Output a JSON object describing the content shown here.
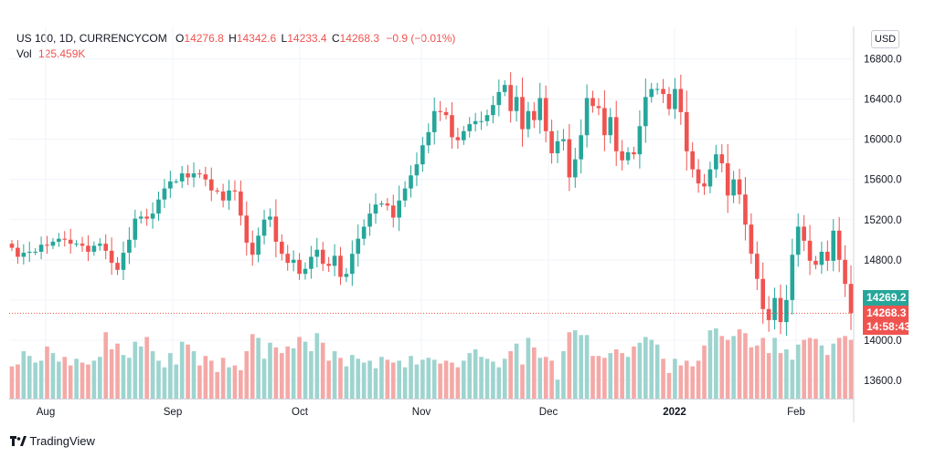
{
  "header": {
    "symbol": "US 100, 1D, CURRENCYCOM",
    "o_label": "O",
    "o_value": "14276.8",
    "h_label": "H",
    "h_value": "14342.6",
    "l_label": "L",
    "l_value": "14233.4",
    "c_label": "C",
    "c_value": "14268.3",
    "change": "−0.9 (−0.01%)",
    "vol_label": "Vol",
    "vol_value": "125.459K"
  },
  "currency": "USD",
  "price_tags": {
    "last": "14269.2",
    "close": "14268.3",
    "countdown": "14:58:43"
  },
  "brand": {
    "name": "TradingView",
    "icon": "tradingview-logo-icon"
  },
  "colors": {
    "up": "#26a69a",
    "down": "#ef5350",
    "vol_up": "#9ed4cf",
    "vol_down": "#f4a9a7"
  },
  "chart_data": {
    "type": "candlestick",
    "y_ticks": [
      "16800.0",
      "16400.0",
      "16000.0",
      "15600.0",
      "15200.0",
      "14800.0",
      "14400.0",
      "14000.0",
      "13600.0"
    ],
    "x_ticks": [
      "Aug",
      "Sep",
      "Oct",
      "Nov",
      "Dec",
      "2022",
      "Feb"
    ],
    "ylim": [
      13400,
      16900
    ],
    "grid": true,
    "opens": [
      14960,
      14920,
      14830,
      14870,
      14880,
      14880,
      14950,
      14940,
      14980,
      15010,
      15000,
      14960,
      14960,
      14940,
      14880,
      14940,
      14960,
      14890,
      14770,
      14700,
      14870,
      15000,
      15210,
      15230,
      15210,
      15260,
      15400,
      15510,
      15580,
      15580,
      15660,
      15620,
      15660,
      15650,
      15600,
      15490,
      15480,
      15390,
      15490,
      15480,
      15240,
      14970,
      14850,
      15040,
      15200,
      15230,
      14980,
      14860,
      14770,
      14800,
      14660,
      14710,
      14830,
      14900,
      14760,
      14740,
      14840,
      14630,
      14660,
      14860,
      15010,
      15130,
      15260,
      15350,
      15360,
      15340,
      15220,
      15390,
      15510,
      15640,
      15750,
      15940,
      16070,
      16280,
      16270,
      16240,
      16020,
      15990,
      16080,
      16150,
      16180,
      16180,
      16240,
      16340,
      16470,
      16540,
      16280,
      16420,
      16100,
      16280,
      16190,
      16410,
      16080,
      15860,
      15980,
      16000,
      15620,
      15800,
      16040,
      16410,
      16330,
      16310,
      16040,
      16220,
      15880,
      15790,
      15870,
      15850,
      16130,
      16420,
      16500,
      16500,
      16450,
      16300,
      16500,
      16270,
      15880,
      15700,
      15560,
      15530,
      15700,
      15850,
      15760,
      15440,
      15600,
      15450,
      15150,
      14860,
      14610,
      14310,
      14200,
      14420,
      14180,
      14400,
      14850,
      15130,
      14990,
      14790,
      14750,
      14880,
      14790,
      15090,
      14800,
      14560
    ],
    "closes": [
      14920,
      14830,
      14870,
      14880,
      14880,
      14950,
      14940,
      14980,
      15010,
      15000,
      14960,
      14960,
      14940,
      14880,
      14940,
      14960,
      14890,
      14770,
      14700,
      14870,
      15000,
      15210,
      15230,
      15210,
      15260,
      15400,
      15510,
      15580,
      15580,
      15660,
      15620,
      15660,
      15650,
      15600,
      15490,
      15480,
      15390,
      15490,
      15480,
      15240,
      14970,
      14850,
      15040,
      15200,
      15230,
      14980,
      14860,
      14770,
      14800,
      14660,
      14710,
      14830,
      14900,
      14760,
      14740,
      14840,
      14630,
      14660,
      14860,
      15010,
      15130,
      15260,
      15350,
      15360,
      15340,
      15220,
      15390,
      15510,
      15640,
      15750,
      15940,
      16070,
      16280,
      16270,
      16240,
      16020,
      15990,
      16080,
      16150,
      16180,
      16180,
      16240,
      16340,
      16470,
      16540,
      16280,
      16420,
      16100,
      16280,
      16190,
      16410,
      16080,
      15860,
      15980,
      16000,
      15620,
      15800,
      16040,
      16410,
      16330,
      16310,
      16040,
      16220,
      15880,
      15790,
      15870,
      15850,
      16130,
      16420,
      16500,
      16500,
      16450,
      16300,
      16500,
      16270,
      15880,
      15700,
      15560,
      15530,
      15700,
      15850,
      15760,
      15440,
      15600,
      15450,
      15150,
      14860,
      14610,
      14310,
      14200,
      14420,
      14180,
      14400,
      14850,
      15130,
      14990,
      14790,
      14750,
      14880,
      14790,
      15090,
      14800,
      14560,
      14268
    ],
    "volume_ylim": [
      0,
      100
    ],
    "volumes": [
      34,
      36,
      50,
      45,
      38,
      40,
      55,
      48,
      39,
      44,
      35,
      42,
      38,
      36,
      40,
      44,
      70,
      52,
      58,
      46,
      43,
      60,
      55,
      65,
      50,
      40,
      33,
      48,
      36,
      60,
      57,
      50,
      35,
      45,
      40,
      28,
      43,
      33,
      35,
      30,
      50,
      68,
      64,
      42,
      59,
      54,
      48,
      55,
      53,
      65,
      60,
      50,
      69,
      59,
      40,
      50,
      43,
      34,
      46,
      42,
      38,
      40,
      32,
      44,
      41,
      38,
      40,
      33,
      45,
      36,
      41,
      43,
      41,
      37,
      40,
      38,
      33,
      40,
      48,
      52,
      44,
      42,
      39,
      33,
      42,
      50,
      58,
      36,
      64,
      54,
      43,
      44,
      40,
      20,
      50,
      70,
      72,
      67,
      67,
      45,
      45,
      43,
      48,
      52,
      48,
      44,
      55,
      59,
      65,
      62,
      57,
      42,
      27,
      42,
      35,
      40,
      34,
      40,
      56,
      72,
      74,
      66,
      62,
      66,
      73,
      69,
      54,
      56,
      64,
      48,
      64,
      48,
      52,
      41,
      57,
      62,
      64,
      63,
      56,
      46,
      58,
      64,
      66,
      62
    ]
  }
}
